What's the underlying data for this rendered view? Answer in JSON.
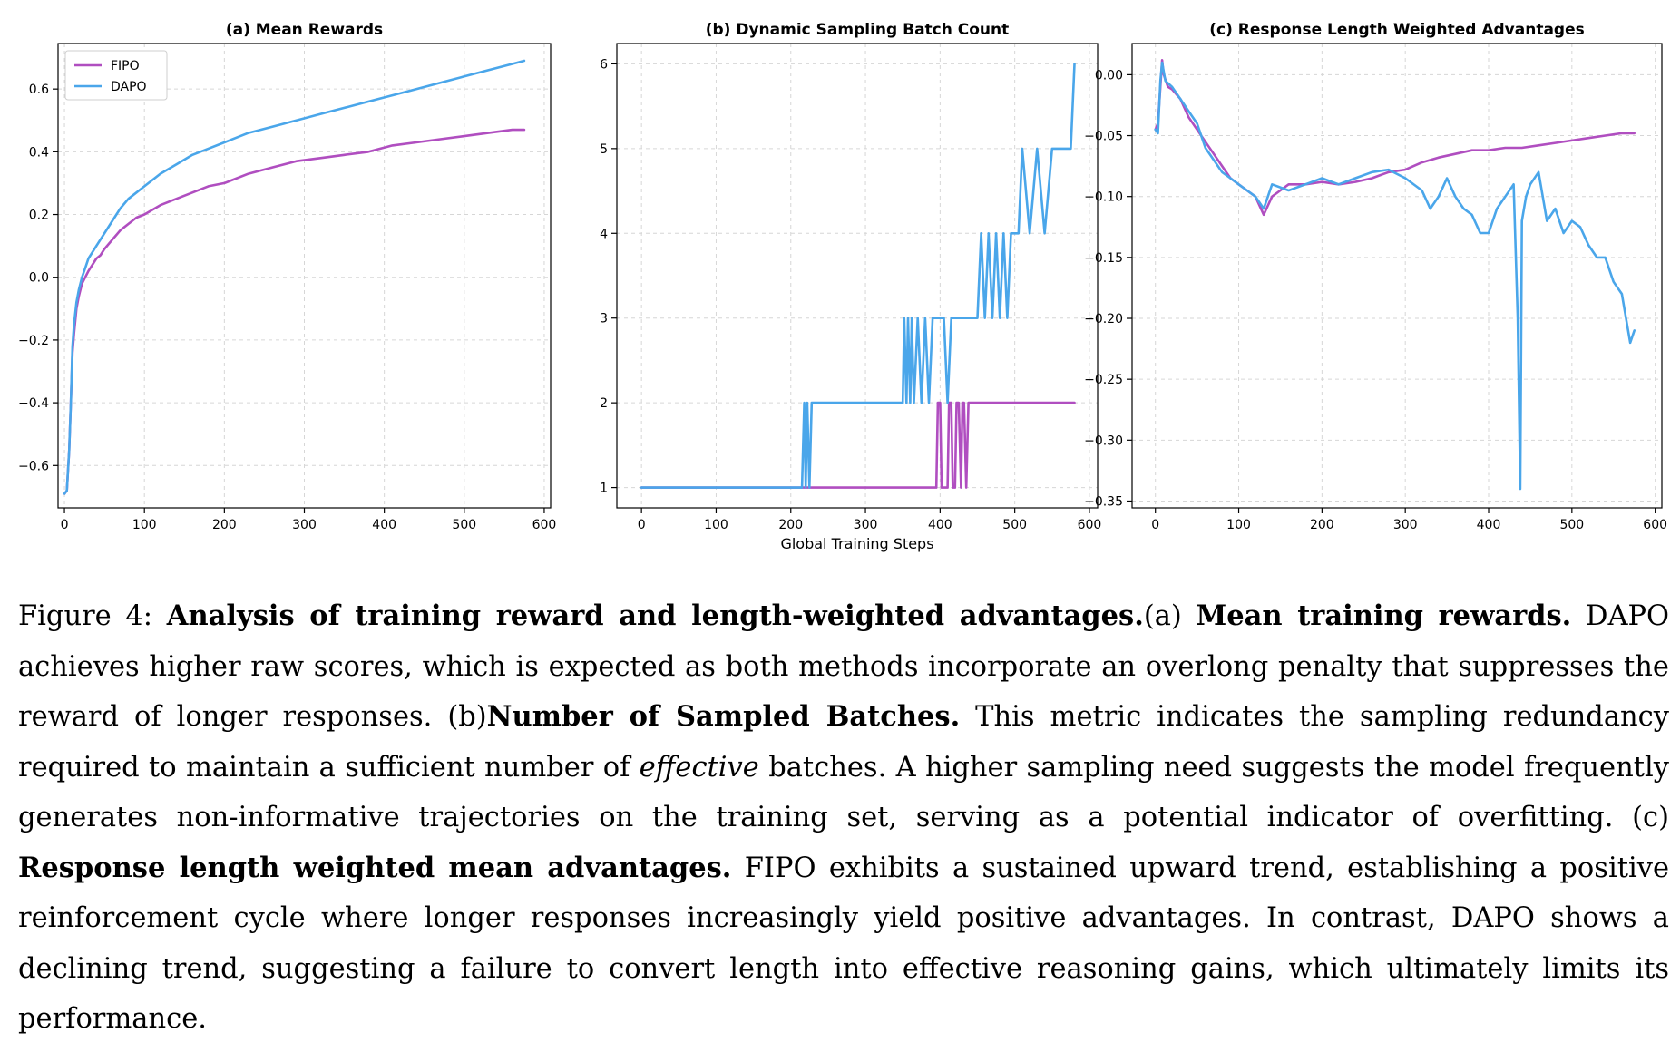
{
  "colors": {
    "FIPO": "#b04ec0",
    "DAPO": "#4aa6ea",
    "grid": "#d6d6d6",
    "axis": "#000000"
  },
  "chart_data": [
    {
      "id": "a",
      "type": "line",
      "title": "(a) Mean Rewards",
      "xlabel": "",
      "ylabel": "",
      "xlim": [
        -8,
        608
      ],
      "ylim": [
        -0.735,
        0.745
      ],
      "xticks": [
        0,
        100,
        200,
        300,
        400,
        500,
        600
      ],
      "xtick_labels": [
        "0",
        "100",
        "200",
        "300",
        "400",
        "500",
        "600"
      ],
      "yticks": [
        -0.6,
        -0.4,
        -0.2,
        0.0,
        0.2,
        0.4,
        0.6
      ],
      "ytick_labels": [
        "−0.6",
        "−0.4",
        "−0.2",
        "0.0",
        "0.2",
        "0.4",
        "0.6"
      ],
      "grid": true,
      "legend": "top-left",
      "series": [
        {
          "name": "FIPO",
          "x": [
            0,
            3,
            6,
            8,
            10,
            12,
            15,
            18,
            22,
            26,
            30,
            35,
            40,
            45,
            50,
            60,
            70,
            80,
            90,
            100,
            120,
            140,
            160,
            180,
            200,
            230,
            260,
            290,
            320,
            350,
            380,
            410,
            440,
            470,
            500,
            530,
            560,
            575
          ],
          "y": [
            -0.69,
            -0.68,
            -0.55,
            -0.4,
            -0.24,
            -0.18,
            -0.1,
            -0.06,
            -0.02,
            0.0,
            0.02,
            0.04,
            0.06,
            0.07,
            0.09,
            0.12,
            0.15,
            0.17,
            0.19,
            0.2,
            0.23,
            0.25,
            0.27,
            0.29,
            0.3,
            0.33,
            0.35,
            0.37,
            0.38,
            0.39,
            0.4,
            0.42,
            0.43,
            0.44,
            0.45,
            0.46,
            0.47,
            0.47
          ]
        },
        {
          "name": "DAPO",
          "x": [
            0,
            3,
            6,
            8,
            10,
            12,
            15,
            18,
            22,
            26,
            30,
            35,
            40,
            45,
            50,
            60,
            70,
            80,
            90,
            100,
            120,
            140,
            160,
            180,
            200,
            230,
            260,
            290,
            320,
            350,
            380,
            410,
            440,
            470,
            500,
            530,
            560,
            575
          ],
          "y": [
            -0.69,
            -0.68,
            -0.55,
            -0.4,
            -0.22,
            -0.15,
            -0.08,
            -0.04,
            0.0,
            0.03,
            0.06,
            0.08,
            0.1,
            0.12,
            0.14,
            0.18,
            0.22,
            0.25,
            0.27,
            0.29,
            0.33,
            0.36,
            0.39,
            0.41,
            0.43,
            0.46,
            0.48,
            0.5,
            0.52,
            0.54,
            0.56,
            0.58,
            0.6,
            0.62,
            0.64,
            0.66,
            0.68,
            0.69
          ]
        }
      ]
    },
    {
      "id": "b",
      "type": "line",
      "title": "(b) Dynamic Sampling Batch Count",
      "xlabel": "Global Training Steps",
      "ylabel": "",
      "xlim": [
        -33,
        611
      ],
      "ylim": [
        0.76,
        6.24
      ],
      "xticks": [
        0,
        100,
        200,
        300,
        400,
        500,
        600
      ],
      "xtick_labels": [
        "0",
        "100",
        "200",
        "300",
        "400",
        "500",
        "600"
      ],
      "yticks": [
        1,
        2,
        3,
        4,
        5,
        6
      ],
      "ytick_labels": [
        "1",
        "2",
        "3",
        "4",
        "5",
        "6"
      ],
      "grid": true,
      "series": [
        {
          "name": "FIPO",
          "x": [
            0,
            395,
            397,
            400,
            402,
            410,
            412,
            415,
            417,
            420,
            422,
            425,
            428,
            430,
            432,
            435,
            438,
            440,
            442,
            580
          ],
          "y": [
            1,
            1,
            2,
            2,
            1,
            1,
            2,
            2,
            1,
            1,
            2,
            2,
            1,
            2,
            2,
            1,
            2,
            2,
            2,
            2
          ]
        },
        {
          "name": "DAPO",
          "x": [
            0,
            215,
            218,
            220,
            222,
            225,
            228,
            230,
            350,
            352,
            355,
            357,
            360,
            362,
            365,
            370,
            375,
            380,
            385,
            390,
            395,
            400,
            405,
            410,
            415,
            420,
            425,
            430,
            440,
            450,
            455,
            460,
            465,
            470,
            475,
            480,
            485,
            490,
            495,
            500,
            505,
            510,
            520,
            530,
            540,
            550,
            560,
            570,
            575,
            580
          ],
          "y": [
            1,
            1,
            2,
            1,
            2,
            1,
            2,
            2,
            2,
            3,
            2,
            3,
            2,
            3,
            2,
            3,
            2,
            3,
            2,
            3,
            3,
            3,
            3,
            2,
            3,
            3,
            3,
            3,
            3,
            3,
            4,
            3,
            4,
            3,
            4,
            3,
            4,
            3,
            4,
            4,
            4,
            5,
            4,
            5,
            4,
            5,
            5,
            5,
            5,
            6
          ]
        }
      ]
    },
    {
      "id": "c",
      "type": "line",
      "title": "(c) Response Length Weighted Advantages",
      "xlabel": "",
      "ylabel": "",
      "xlim": [
        -28,
        608
      ],
      "ylim": [
        -0.3556,
        0.0256
      ],
      "xticks": [
        0,
        100,
        200,
        300,
        400,
        500,
        600
      ],
      "xtick_labels": [
        "0",
        "100",
        "200",
        "300",
        "400",
        "500",
        "600"
      ],
      "yticks": [
        0.0,
        -0.05,
        -0.1,
        -0.15,
        -0.2,
        -0.25,
        -0.3,
        -0.35
      ],
      "ytick_labels": [
        "0.00",
        "−0.05",
        "−0.10",
        "−0.15",
        "−0.20",
        "−0.25",
        "−0.30",
        "−0.35"
      ],
      "grid": true,
      "series": [
        {
          "name": "FIPO",
          "x": [
            0,
            3,
            6,
            8,
            10,
            15,
            20,
            30,
            40,
            50,
            60,
            70,
            80,
            90,
            100,
            110,
            120,
            130,
            140,
            150,
            160,
            180,
            200,
            220,
            240,
            260,
            280,
            300,
            320,
            340,
            360,
            380,
            400,
            420,
            440,
            460,
            480,
            500,
            520,
            540,
            560,
            575
          ],
          "y": [
            -0.045,
            -0.04,
            -0.01,
            0.012,
            0.0,
            -0.01,
            -0.012,
            -0.02,
            -0.035,
            -0.045,
            -0.055,
            -0.065,
            -0.075,
            -0.085,
            -0.09,
            -0.095,
            -0.1,
            -0.115,
            -0.1,
            -0.095,
            -0.09,
            -0.09,
            -0.088,
            -0.09,
            -0.088,
            -0.085,
            -0.08,
            -0.078,
            -0.072,
            -0.068,
            -0.065,
            -0.062,
            -0.062,
            -0.06,
            -0.06,
            -0.058,
            -0.056,
            -0.054,
            -0.052,
            -0.05,
            -0.048,
            -0.048
          ]
        },
        {
          "name": "DAPO",
          "x": [
            0,
            3,
            6,
            8,
            12,
            20,
            30,
            40,
            50,
            60,
            70,
            80,
            90,
            100,
            110,
            120,
            130,
            140,
            160,
            180,
            200,
            220,
            240,
            260,
            280,
            300,
            320,
            330,
            340,
            350,
            360,
            370,
            380,
            390,
            400,
            410,
            420,
            430,
            435,
            438,
            440,
            445,
            450,
            460,
            470,
            480,
            490,
            500,
            510,
            520,
            530,
            540,
            550,
            560,
            565,
            570,
            575
          ],
          "y": [
            -0.045,
            -0.048,
            -0.005,
            0.01,
            -0.005,
            -0.01,
            -0.02,
            -0.03,
            -0.04,
            -0.06,
            -0.07,
            -0.08,
            -0.085,
            -0.09,
            -0.095,
            -0.1,
            -0.11,
            -0.09,
            -0.095,
            -0.09,
            -0.085,
            -0.09,
            -0.085,
            -0.08,
            -0.078,
            -0.085,
            -0.095,
            -0.11,
            -0.1,
            -0.085,
            -0.1,
            -0.11,
            -0.115,
            -0.13,
            -0.13,
            -0.11,
            -0.1,
            -0.09,
            -0.2,
            -0.34,
            -0.12,
            -0.1,
            -0.09,
            -0.08,
            -0.12,
            -0.11,
            -0.13,
            -0.12,
            -0.125,
            -0.14,
            -0.15,
            -0.15,
            -0.17,
            -0.18,
            -0.2,
            -0.22,
            -0.21
          ]
        }
      ]
    }
  ],
  "caption": {
    "figure_label": "Figure 4:",
    "title": "Analysis of training reward and length-weighted advantages.",
    "a_marker": "(a)",
    "a_title": "Mean training rewards.",
    "a_text": "DAPO achieves higher raw scores, which is expected as both methods incorporate an overlong penalty that suppresses the reward of longer responses.",
    "b_marker": "(b)",
    "b_title": "Number of Sampled Batches.",
    "b_text_1": "This metric indicates the sampling redundancy required to maintain a sufficient number of",
    "b_emph": "effective",
    "b_text_2": "batches. A higher sampling need suggests the model frequently generates non-informative trajectories on the training set, serving as a potential indicator of overfitting.",
    "c_marker": "(c)",
    "c_title": "Response length weighted mean advantages.",
    "c_text": "FIPO exhibits a sustained upward trend, establishing a positive reinforcement cycle where longer responses increasingly yield positive advantages. In contrast, DAPO shows a declining trend, suggesting a failure to convert length into effective reasoning gains, which ultimately limits its performance."
  }
}
